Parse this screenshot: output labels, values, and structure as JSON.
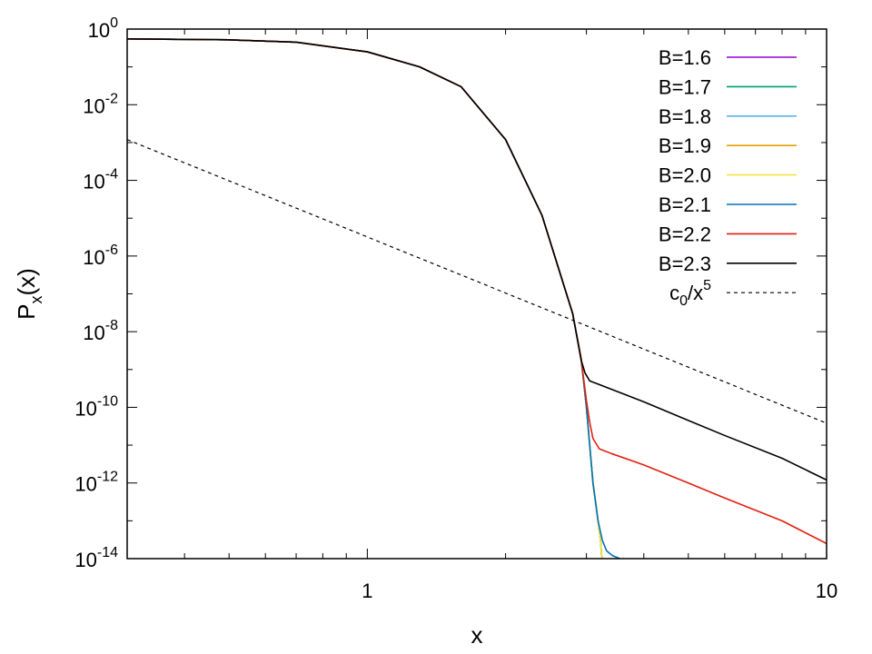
{
  "chart_data": {
    "type": "line",
    "xlabel": "x",
    "ylabel_main": "P",
    "ylabel_sub": "x",
    "ylabel_rest": "(x)",
    "xscale": "log",
    "yscale": "log",
    "xlim": [
      0.3,
      10
    ],
    "ylim": [
      1e-14,
      1
    ],
    "x_ticks": [
      {
        "value": 1,
        "label": "1"
      },
      {
        "value": 10,
        "label": "10"
      }
    ],
    "y_ticks": [
      {
        "exp": 0,
        "base": "10",
        "sup": "0"
      },
      {
        "exp": -2,
        "base": "10",
        "sup": "-2"
      },
      {
        "exp": -4,
        "base": "10",
        "sup": "-4"
      },
      {
        "exp": -6,
        "base": "10",
        "sup": "-6"
      },
      {
        "exp": -8,
        "base": "10",
        "sup": "-8"
      },
      {
        "exp": -10,
        "base": "10",
        "sup": "-10"
      },
      {
        "exp": -12,
        "base": "10",
        "sup": "-12"
      },
      {
        "exp": -14,
        "base": "10",
        "sup": "-14"
      }
    ],
    "grid": false,
    "legend_position": "top-right",
    "series": [
      {
        "name": "B=1.6",
        "color": "#9400d3",
        "dash": false,
        "x": [
          0.3,
          0.5,
          0.7,
          1.0,
          1.3,
          1.6,
          2.0,
          2.4,
          2.8,
          2.92,
          3.0,
          3.1,
          3.18,
          3.22,
          3.24
        ],
        "y": [
          0.55,
          0.52,
          0.45,
          0.25,
          0.1,
          0.03,
          0.0012,
          1.2e-05,
          3e-08,
          2e-09,
          1e-10,
          1e-12,
          1e-13,
          3e-14,
          1e-14
        ]
      },
      {
        "name": "B=1.7",
        "color": "#009e73",
        "dash": false,
        "x": [
          0.3,
          0.5,
          0.7,
          1.0,
          1.3,
          1.6,
          2.0,
          2.4,
          2.8,
          2.92,
          3.0,
          3.1,
          3.18,
          3.22,
          3.24
        ],
        "y": [
          0.55,
          0.52,
          0.45,
          0.25,
          0.1,
          0.03,
          0.0012,
          1.2e-05,
          3e-08,
          2e-09,
          1e-10,
          1e-12,
          1e-13,
          3e-14,
          1e-14
        ]
      },
      {
        "name": "B=1.8",
        "color": "#56b4e9",
        "dash": false,
        "x": [
          0.3,
          0.5,
          0.7,
          1.0,
          1.3,
          1.6,
          2.0,
          2.4,
          2.8,
          2.92,
          3.0,
          3.1,
          3.18,
          3.22,
          3.24
        ],
        "y": [
          0.55,
          0.52,
          0.45,
          0.25,
          0.1,
          0.03,
          0.0012,
          1.2e-05,
          3e-08,
          2e-09,
          1e-10,
          1e-12,
          1e-13,
          3e-14,
          1e-14
        ]
      },
      {
        "name": "B=1.9",
        "color": "#e69f00",
        "dash": false,
        "x": [
          0.3,
          0.5,
          0.7,
          1.0,
          1.3,
          1.6,
          2.0,
          2.4,
          2.8,
          2.92,
          3.0,
          3.1,
          3.18,
          3.22,
          3.24
        ],
        "y": [
          0.55,
          0.52,
          0.45,
          0.25,
          0.1,
          0.03,
          0.0012,
          1.2e-05,
          3e-08,
          2e-09,
          1e-10,
          1e-12,
          1e-13,
          3e-14,
          1e-14
        ]
      },
      {
        "name": "B=2.0",
        "color": "#f0e442",
        "dash": false,
        "x": [
          0.3,
          0.5,
          0.7,
          1.0,
          1.3,
          1.6,
          2.0,
          2.4,
          2.8,
          2.92,
          3.0,
          3.1,
          3.18,
          3.22,
          3.24
        ],
        "y": [
          0.55,
          0.52,
          0.45,
          0.25,
          0.1,
          0.03,
          0.0012,
          1.2e-05,
          3e-08,
          2e-09,
          1e-10,
          1e-12,
          1e-13,
          3e-14,
          1e-14
        ]
      },
      {
        "name": "B=2.1",
        "color": "#0072b2",
        "dash": false,
        "x": [
          0.3,
          0.5,
          0.7,
          1.0,
          1.3,
          1.6,
          2.0,
          2.4,
          2.8,
          2.92,
          3.0,
          3.1,
          3.18,
          3.25,
          3.32,
          3.42,
          3.55
        ],
        "y": [
          0.55,
          0.52,
          0.45,
          0.25,
          0.1,
          0.03,
          0.0012,
          1.2e-05,
          3e-08,
          2e-09,
          1e-10,
          1e-12,
          1e-13,
          3e-14,
          1.6e-14,
          1.2e-14,
          1e-14
        ]
      },
      {
        "name": "B=2.2",
        "color": "#e51e10",
        "dash": false,
        "x": [
          0.3,
          0.5,
          0.7,
          1.0,
          1.3,
          1.6,
          2.0,
          2.4,
          2.8,
          2.92,
          3.0,
          3.05,
          3.1,
          3.2,
          3.4,
          4.0,
          5.0,
          6.0,
          8.0,
          10.0
        ],
        "y": [
          0.55,
          0.52,
          0.45,
          0.25,
          0.1,
          0.03,
          0.0012,
          1.2e-05,
          3e-08,
          2e-09,
          1.5e-10,
          4e-11,
          1.5e-11,
          8e-12,
          6e-12,
          3e-12,
          1e-12,
          4e-13,
          1e-13,
          2.5e-14
        ]
      },
      {
        "name": "B=2.3",
        "color": "#000000",
        "dash": false,
        "x": [
          0.3,
          0.5,
          0.7,
          1.0,
          1.3,
          1.6,
          2.0,
          2.4,
          2.8,
          2.92,
          2.98,
          3.05,
          3.2,
          4.0,
          5.0,
          6.0,
          8.0,
          10.0
        ],
        "y": [
          0.55,
          0.52,
          0.45,
          0.25,
          0.1,
          0.03,
          0.0012,
          1.2e-05,
          3e-08,
          1.8e-09,
          8e-10,
          5e-10,
          4e-10,
          1.4e-10,
          4.5e-11,
          1.8e-11,
          4.5e-12,
          1.2e-12
        ]
      },
      {
        "name_main": "c",
        "name_sub": "0",
        "name_mid": "/x",
        "name_sup": "5",
        "color": "#000000",
        "dash": true,
        "x": [
          0.3,
          10.0
        ],
        "y": [
          0.0012,
          3.8e-11
        ]
      }
    ]
  }
}
